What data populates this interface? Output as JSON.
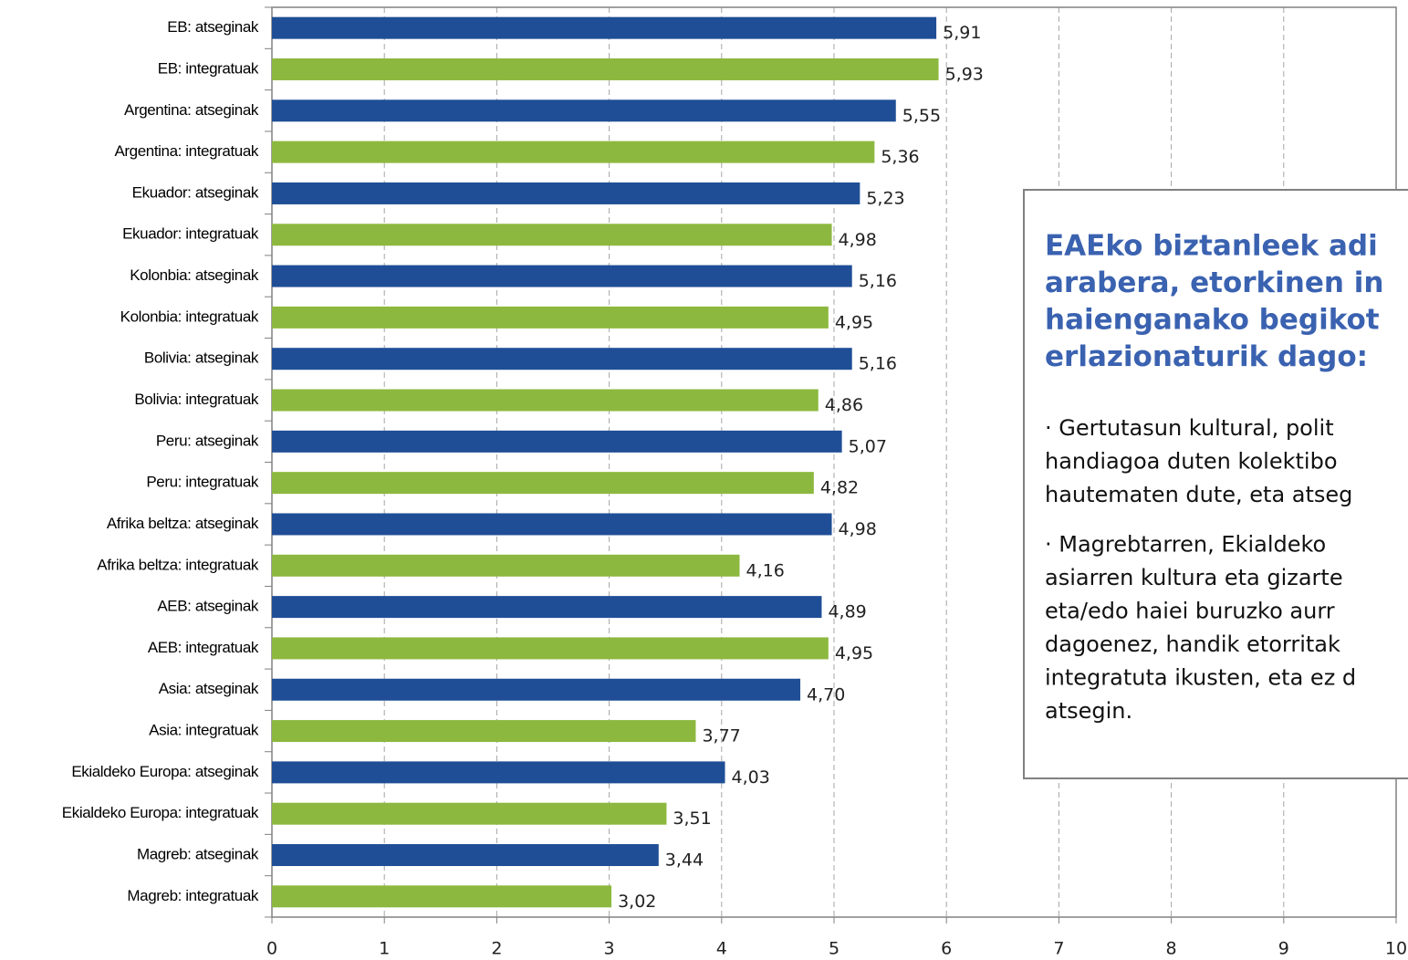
{
  "chart_data": {
    "type": "barh",
    "categories": [
      "EB: atseginak",
      "EB: integratuak",
      "Argentina: atseginak",
      "Argentina: integratuak",
      "Ekuador: atseginak",
      "Ekuador: integratuak",
      "Kolonbia: atseginak",
      "Kolonbia: integratuak",
      "Bolivia: atseginak",
      "Bolivia: integratuak",
      "Peru: atseginak",
      "Peru: integratuak",
      "Afrika beltza: atseginak",
      "Afrika beltza: integratuak",
      "AEB: atseginak",
      "AEB: integratuak",
      "Asia: atseginak",
      "Asia: integratuak",
      "Ekialdeko Europa: atseginak",
      "Ekialdeko Europa: integratuak",
      "Magreb: atseginak",
      "Magreb: integratuak"
    ],
    "values": [
      5.91,
      5.93,
      5.55,
      5.36,
      5.23,
      4.98,
      5.16,
      4.95,
      5.16,
      4.86,
      5.07,
      4.82,
      4.98,
      4.16,
      4.89,
      4.95,
      4.7,
      3.77,
      4.03,
      3.51,
      3.44,
      3.02
    ],
    "value_labels": [
      "5,91",
      "5,93",
      "5,55",
      "5,36",
      "5,23",
      "4,98",
      "5,16",
      "4,95",
      "5,16",
      "4,86",
      "5,07",
      "4,82",
      "4,98",
      "4,16",
      "4,89",
      "4,95",
      "4,70",
      "3,77",
      "4,03",
      "3,51",
      "3,44",
      "3,02"
    ],
    "colors": [
      "#1f4e96",
      "#8db83f",
      "#1f4e96",
      "#8db83f",
      "#1f4e96",
      "#8db83f",
      "#1f4e96",
      "#8db83f",
      "#1f4e96",
      "#8db83f",
      "#1f4e96",
      "#8db83f",
      "#1f4e96",
      "#8db83f",
      "#1f4e96",
      "#8db83f",
      "#1f4e96",
      "#8db83f",
      "#1f4e96",
      "#8db83f",
      "#1f4e96",
      "#8db83f"
    ],
    "xlim": [
      0,
      10
    ],
    "xticks": [
      0,
      1,
      2,
      3,
      4,
      5,
      6,
      7,
      8,
      9,
      10
    ],
    "grid": true,
    "annotation": {
      "title_lines": [
        "EAEko biztanleek adi",
        "arabera, etorkinen in",
        "haienganako begikot",
        "erlazionaturik dago:"
      ],
      "paragraphs": [
        [
          "· Gertutasun kultural, polit",
          "handiagoa duten kolektibo",
          "hautematen dute, eta atseg"
        ],
        [
          "· Magrebtarren, Ekialdeko",
          "asiarren kultura eta gizarte",
          "eta/edo haiei buruzko aurr",
          "dagoenez, handik etorritak",
          "integratuta ikusten, eta ez d",
          "atsegin."
        ]
      ]
    }
  }
}
